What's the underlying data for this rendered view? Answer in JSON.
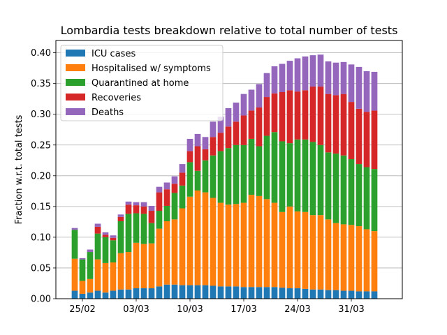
{
  "chart_data": {
    "type": "bar",
    "stacked": true,
    "title": "Lombardia tests breakdown relative to total number of tests",
    "xlabel": "",
    "ylabel": "Fraction w.r.t. total tests",
    "ylim": [
      0.0,
      0.42
    ],
    "yticks": [
      0.0,
      0.05,
      0.1,
      0.15,
      0.2,
      0.25,
      0.3,
      0.35,
      0.4
    ],
    "ytick_labels": [
      "0.00",
      "0.05",
      "0.10",
      "0.15",
      "0.20",
      "0.25",
      "0.30",
      "0.35",
      "0.40"
    ],
    "grid": "horizontal",
    "legend_position": "top-left",
    "categories": [
      "24/02",
      "25/02",
      "26/02",
      "27/02",
      "28/02",
      "29/02",
      "01/03",
      "02/03",
      "03/03",
      "04/03",
      "05/03",
      "06/03",
      "07/03",
      "08/03",
      "09/03",
      "10/03",
      "11/03",
      "12/03",
      "13/03",
      "14/03",
      "15/03",
      "16/03",
      "17/03",
      "18/03",
      "19/03",
      "20/03",
      "21/03",
      "22/03",
      "23/03",
      "24/03",
      "25/03",
      "26/03",
      "27/03",
      "28/03",
      "29/03",
      "30/03",
      "31/03",
      "01/04",
      "02/04",
      "03/04"
    ],
    "xticks": [
      {
        "index": 1,
        "label": "25/02"
      },
      {
        "index": 8,
        "label": "03/03"
      },
      {
        "index": 15,
        "label": "10/03"
      },
      {
        "index": 22,
        "label": "17/03"
      },
      {
        "index": 29,
        "label": "24/03"
      },
      {
        "index": 36,
        "label": "31/03"
      }
    ],
    "series": [
      {
        "name": "ICU cases",
        "color": "#1f77b4",
        "values": [
          0.013,
          0.008,
          0.01,
          0.013,
          0.01,
          0.013,
          0.015,
          0.015,
          0.017,
          0.017,
          0.017,
          0.02,
          0.023,
          0.023,
          0.022,
          0.022,
          0.022,
          0.022,
          0.021,
          0.02,
          0.02,
          0.02,
          0.019,
          0.019,
          0.019,
          0.019,
          0.019,
          0.018,
          0.017,
          0.017,
          0.016,
          0.015,
          0.015,
          0.014,
          0.014,
          0.013,
          0.013,
          0.012,
          0.012,
          0.012
        ]
      },
      {
        "name": "Hospitalised w/ symptoms",
        "color": "#ff7f0e",
        "values": [
          0.052,
          0.021,
          0.022,
          0.051,
          0.048,
          0.046,
          0.059,
          0.061,
          0.074,
          0.072,
          0.073,
          0.094,
          0.103,
          0.106,
          0.125,
          0.144,
          0.154,
          0.151,
          0.143,
          0.136,
          0.133,
          0.134,
          0.137,
          0.15,
          0.148,
          0.143,
          0.137,
          0.123,
          0.133,
          0.125,
          0.125,
          0.121,
          0.121,
          0.115,
          0.109,
          0.108,
          0.107,
          0.106,
          0.101,
          0.098
        ]
      },
      {
        "name": "Quarantined at home",
        "color": "#2ca02c",
        "values": [
          0.047,
          0.035,
          0.044,
          0.042,
          0.042,
          0.036,
          0.052,
          0.062,
          0.048,
          0.049,
          0.033,
          0.029,
          0.025,
          0.043,
          0.037,
          0.056,
          0.032,
          0.052,
          0.069,
          0.084,
          0.092,
          0.096,
          0.094,
          0.091,
          0.081,
          0.103,
          0.115,
          0.115,
          0.103,
          0.117,
          0.118,
          0.119,
          0.114,
          0.109,
          0.113,
          0.112,
          0.107,
          0.101,
          0.101,
          0.101
        ]
      },
      {
        "name": "Recoveries",
        "color": "#d62728",
        "values": [
          0.0,
          0.0,
          0.0,
          0.011,
          0.004,
          0.004,
          0.007,
          0.015,
          0.013,
          0.012,
          0.02,
          0.03,
          0.027,
          0.015,
          0.021,
          0.018,
          0.04,
          0.018,
          0.03,
          0.03,
          0.035,
          0.038,
          0.048,
          0.046,
          0.063,
          0.063,
          0.063,
          0.08,
          0.086,
          0.078,
          0.08,
          0.09,
          0.095,
          0.095,
          0.095,
          0.1,
          0.093,
          0.09,
          0.09,
          0.095
        ]
      },
      {
        "name": "Deaths",
        "color": "#9467bd",
        "values": [
          0.003,
          0.002,
          0.004,
          0.005,
          0.004,
          0.004,
          0.004,
          0.005,
          0.005,
          0.007,
          0.008,
          0.009,
          0.011,
          0.012,
          0.014,
          0.02,
          0.02,
          0.02,
          0.025,
          0.026,
          0.03,
          0.031,
          0.035,
          0.034,
          0.038,
          0.039,
          0.044,
          0.046,
          0.048,
          0.054,
          0.055,
          0.051,
          0.052,
          0.053,
          0.053,
          0.052,
          0.061,
          0.068,
          0.066,
          0.063
        ]
      }
    ]
  }
}
